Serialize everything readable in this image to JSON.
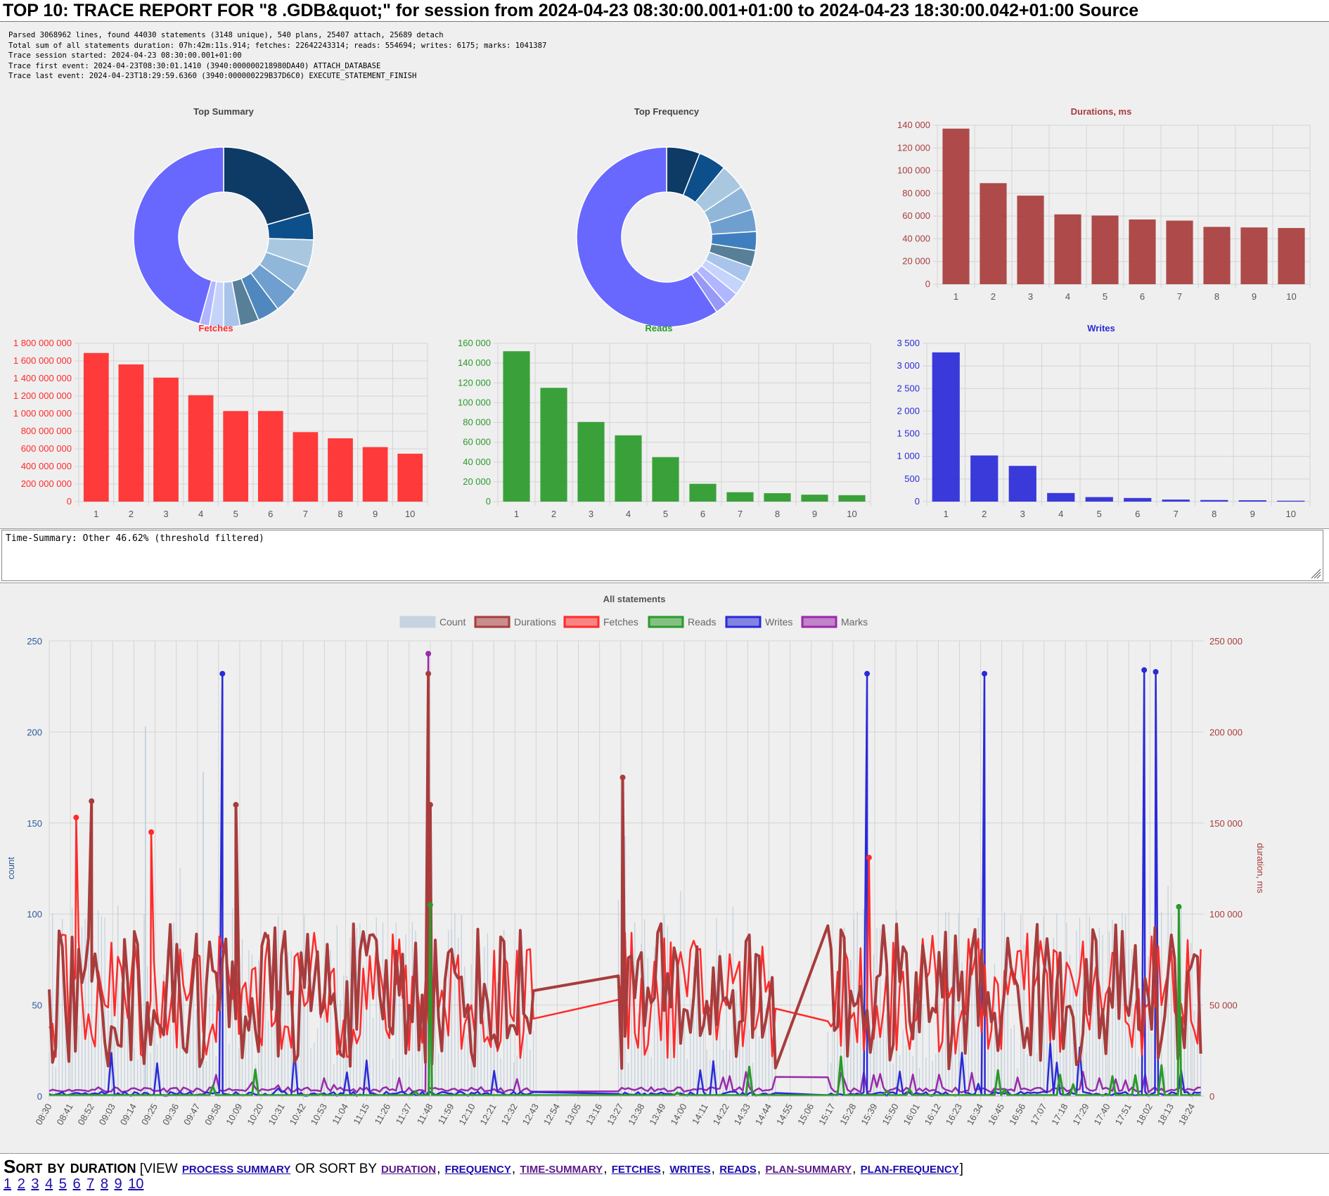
{
  "header": {
    "title": "TOP 10: TRACE REPORT FOR \"8                                 .GDB&quot;\" for session from 2024-04-23 08:30:00.001+01:00 to 2024-04-23 18:30:00.042+01:00 Source"
  },
  "stats": {
    "lines": [
      "Parsed 3068962 lines, found 44030 statements (3148 unique), 540 plans, 25407 attach, 25689 detach",
      "Total sum of all statements duration: 07h:42m:11s.914; fetches: 22642243314; reads: 554694; writes: 6175; marks: 1041387",
      "Trace session started: 2024-04-23 08:30:00.001+01:00",
      "Trace first event: 2024-04-23T08:30:01.1410 (3940:000000218980DA40) ATTACH_DATABASE",
      "Trace last event: 2024-04-23T18:29:59.6360 (3940:000000229B37D6C0) EXECUTE_STATEMENT_FINISH"
    ]
  },
  "time_summary": {
    "text": "Time-Summary: Other 46.62% (threshold filtered)"
  },
  "sort_section": {
    "heading": "Sort by duration",
    "view_prefix": "[view",
    "or_sort_by": "or sort by",
    "closing": "]",
    "process_summary_link": "process summary",
    "links": [
      "duration",
      "frequency",
      "time-summary",
      "fetches",
      "writes",
      "reads",
      "plan-summary",
      "plan-frequency"
    ],
    "pages": [
      "1",
      "2",
      "3",
      "4",
      "5",
      "6",
      "7",
      "8",
      "9",
      "10"
    ]
  },
  "colors": {
    "durations": "#a83c3c",
    "fetches": "#ff2a2a",
    "reads": "#2a9a2a",
    "writes": "#2a2ad8",
    "marks": "#9a2aaa",
    "count": "#b9cbdb",
    "donut_other": "#6868ff"
  },
  "chart_data": [
    {
      "id": "top-summary",
      "type": "pie",
      "title": "Top Summary",
      "donut": true,
      "values": [
        21.0,
        5.0,
        5.0,
        5.0,
        4.5,
        4.0,
        3.5,
        3.0,
        2.6,
        1.8,
        46.6
      ],
      "colors": [
        "#0d3b66",
        "#0d4f8b",
        "#a9c8e0",
        "#90b7d9",
        "#6f9fcf",
        "#4f87bf",
        "#587f98",
        "#a8c4ea",
        "#c6d4fb",
        "#b0b6ff",
        "#6868ff"
      ]
    },
    {
      "id": "top-frequency",
      "type": "pie",
      "title": "Top Frequency",
      "donut": true,
      "values": [
        6.0,
        5.0,
        4.6,
        4.4,
        4.0,
        3.4,
        3.0,
        3.0,
        2.5,
        2.5,
        2.2,
        59.4
      ],
      "colors": [
        "#0d3b66",
        "#0d4f8b",
        "#a9c8e0",
        "#90b7d9",
        "#6f9fcf",
        "#3f7fbf",
        "#587f98",
        "#a8c4ea",
        "#c6d4fb",
        "#b0b6ff",
        "#9898f6",
        "#6868ff"
      ]
    },
    {
      "id": "durations",
      "type": "bar",
      "title": "Durations, ms",
      "title_color": "#a83c3c",
      "color": "#a83c3c",
      "categories": [
        "1",
        "2",
        "3",
        "4",
        "5",
        "6",
        "7",
        "8",
        "9",
        "10"
      ],
      "values": [
        137000,
        89000,
        78000,
        61500,
        60500,
        57000,
        56000,
        50500,
        50000,
        49500
      ],
      "ylim": [
        0,
        140000
      ],
      "yticks": [
        0,
        20000,
        40000,
        60000,
        80000,
        100000,
        120000,
        140000
      ],
      "ytick_labels": [
        "0",
        "20 000",
        "40 000",
        "60 000",
        "80 000",
        "100 000",
        "120 000",
        "140 000"
      ]
    },
    {
      "id": "fetches",
      "type": "bar",
      "title": "Fetches",
      "title_color": "#ff2a2a",
      "color": "#ff2a2a",
      "categories": [
        "1",
        "2",
        "3",
        "4",
        "5",
        "6",
        "7",
        "8",
        "9",
        "10"
      ],
      "values": [
        1690000000,
        1560000000,
        1410000000,
        1210000000,
        1030000000,
        1030000000,
        790000000,
        720000000,
        620000000,
        545000000
      ],
      "ylim": [
        0,
        1800000000
      ],
      "yticks": [
        0,
        200000000,
        400000000,
        600000000,
        800000000,
        1000000000,
        1200000000,
        1400000000,
        1600000000,
        1800000000
      ],
      "ytick_labels": [
        "0",
        "200 000 000",
        "400 000 000",
        "600 000 000",
        "800 000 000",
        "1 000 000 000",
        "1 200 000 000",
        "1 400 000 000",
        "1 600 000 000",
        "1 800 000 000"
      ]
    },
    {
      "id": "reads",
      "type": "bar",
      "title": "Reads",
      "title_color": "#2a9a2a",
      "color": "#2a9a2a",
      "categories": [
        "1",
        "2",
        "3",
        "4",
        "5",
        "6",
        "7",
        "8",
        "9",
        "10"
      ],
      "values": [
        152000,
        115000,
        80500,
        67000,
        45000,
        18000,
        9500,
        8500,
        7000,
        6500
      ],
      "ylim": [
        0,
        160000
      ],
      "yticks": [
        0,
        20000,
        40000,
        60000,
        80000,
        100000,
        120000,
        140000,
        160000
      ],
      "ytick_labels": [
        "0",
        "20 000",
        "40 000",
        "60 000",
        "80 000",
        "100 000",
        "120 000",
        "140 000",
        "160 000"
      ]
    },
    {
      "id": "writes",
      "type": "bar",
      "title": "Writes",
      "title_color": "#2a2ad8",
      "color": "#2a2ad8",
      "categories": [
        "1",
        "2",
        "3",
        "4",
        "5",
        "6",
        "7",
        "8",
        "9",
        "10"
      ],
      "values": [
        3300,
        1020,
        790,
        190,
        100,
        80,
        45,
        35,
        30,
        20
      ],
      "ylim": [
        0,
        3500
      ],
      "yticks": [
        0,
        500,
        1000,
        1500,
        2000,
        2500,
        3000,
        3500
      ],
      "ytick_labels": [
        "0",
        "500",
        "1 000",
        "1 500",
        "2 000",
        "2 500",
        "3 000",
        "3 500"
      ]
    },
    {
      "id": "all-statements",
      "type": "line",
      "title": "All statements",
      "legend": [
        "Count",
        "Durations",
        "Fetches",
        "Reads",
        "Writes",
        "Marks"
      ],
      "legend_position": "top",
      "ylabel_left": "count",
      "ylabel_right": "duration, ms",
      "ylim_left": [
        0,
        250
      ],
      "ylim_right": [
        0,
        250000
      ],
      "yticks_left": [
        "0",
        "50",
        "100",
        "150",
        "200",
        "250"
      ],
      "yticks_right": [
        "0",
        "50 000",
        "100 000",
        "150 000",
        "200 000",
        "250 000"
      ],
      "x_tick_labels": [
        "08:30",
        "08:41",
        "08:52",
        "09:03",
        "09:14",
        "09:25",
        "09:36",
        "09:47",
        "09:58",
        "10:09",
        "10:20",
        "10:31",
        "10:42",
        "10:53",
        "11:04",
        "11:15",
        "11:26",
        "11:37",
        "11:48",
        "11:59",
        "12:10",
        "12:21",
        "12:32",
        "12:43",
        "12:54",
        "13:05",
        "13:16",
        "13:27",
        "13:38",
        "13:49",
        "14:00",
        "14:11",
        "14:22",
        "14:33",
        "14:44",
        "14:55",
        "15:06",
        "15:17",
        "15:28",
        "15:39",
        "15:50",
        "16:01",
        "16:12",
        "16:23",
        "16:34",
        "16:45",
        "16:56",
        "17:07",
        "17:18",
        "17:29",
        "17:40",
        "17:51",
        "18:02",
        "18:13",
        "18:24"
      ],
      "x_start": "08:30",
      "x_end": "18:30",
      "gaps": [
        [
          "12:43",
          "13:25"
        ],
        [
          "14:48",
          "15:13"
        ]
      ],
      "approximate_peaks": {
        "durations": [
          [
            "11:47",
            232000
          ],
          [
            "13:28",
            175000
          ],
          [
            "11:48",
            160000
          ],
          [
            "08:52",
            162000
          ],
          [
            "10:07",
            160000
          ]
        ],
        "writes": [
          [
            "10:00",
            232000
          ],
          [
            "15:35",
            232000
          ],
          [
            "16:36",
            232000
          ],
          [
            "17:59",
            234000
          ],
          [
            "18:05",
            233000
          ]
        ],
        "marks": [
          [
            "11:47",
            243000
          ]
        ],
        "fetches": [
          [
            "08:44",
            153000
          ],
          [
            "15:36",
            131000
          ],
          [
            "09:23",
            145000
          ]
        ],
        "reads": [
          [
            "11:48",
            105000
          ],
          [
            "18:17",
            104000
          ]
        ],
        "count": [
          [
            "09:20",
            203
          ],
          [
            "11:47",
            240
          ],
          [
            "09:50",
            178
          ]
        ]
      }
    }
  ]
}
